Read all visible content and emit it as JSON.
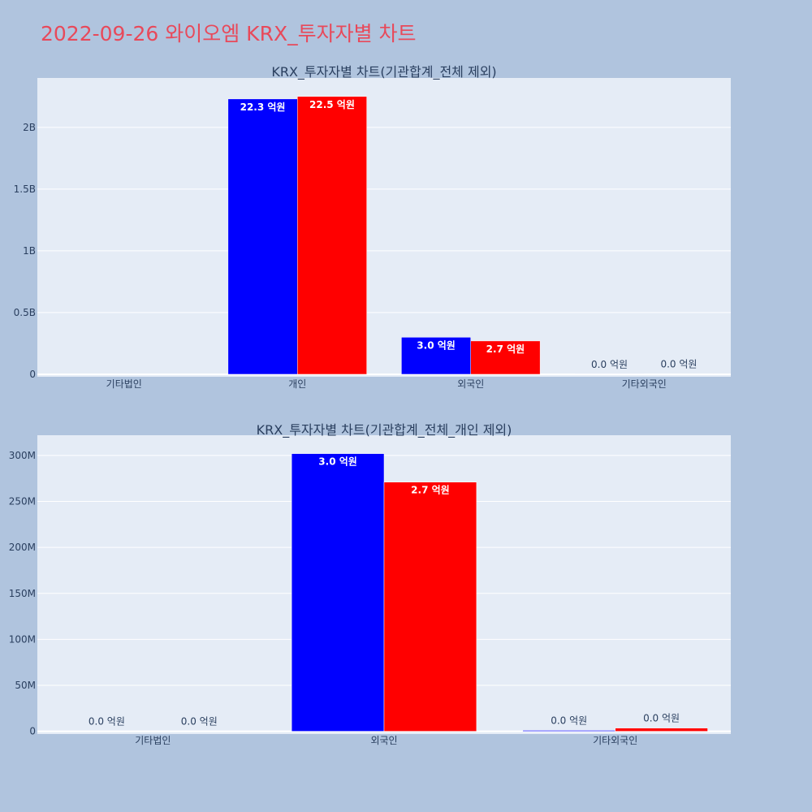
{
  "page": {
    "title": "2022-09-26 와이오엠 KRX_투자자별 차트",
    "background": "#b0c4de",
    "title_color": "#e8495a"
  },
  "chart_data": [
    {
      "type": "bar",
      "title": "KRX_투자자별 차트(기관합계_전체 제외)",
      "categories": [
        "기타법인",
        "개인",
        "외국인",
        "기타외국인"
      ],
      "series": [
        {
          "color": "#0000ff",
          "values": [
            0,
            2230000000,
            300000000,
            1000000
          ],
          "labels": [
            "",
            "22.3 억원",
            "3.0 억원",
            "0.0 억원"
          ]
        },
        {
          "color": "#ff0000",
          "values": [
            0,
            2250000000,
            270000000,
            3000000
          ],
          "labels": [
            "",
            "22.5 억원",
            "2.7 억원",
            "0.0 억원"
          ]
        }
      ],
      "yticks": [
        0,
        500000000,
        1000000000,
        1500000000,
        2000000000
      ],
      "ytick_labels": [
        "0",
        "0.5B",
        "1B",
        "1.5B",
        "2B"
      ],
      "ylim": [
        -20000000,
        2400000000
      ],
      "grid": true,
      "plot_background": "#e5ecf6"
    },
    {
      "type": "bar",
      "title": "KRX_투자자별 차트(기관합계_전체_개인 제외)",
      "categories": [
        "기타법인",
        "외국인",
        "기타외국인"
      ],
      "series": [
        {
          "color": "#0000ff",
          "values": [
            0,
            302000000,
            1000000
          ],
          "labels": [
            "0.0 억원",
            "3.0 억원",
            "0.0 억원"
          ]
        },
        {
          "color": "#ff0000",
          "values": [
            0,
            271000000,
            3500000
          ],
          "labels": [
            "0.0 억원",
            "2.7 억원",
            "0.0 억원"
          ]
        }
      ],
      "yticks": [
        0,
        50000000,
        100000000,
        150000000,
        200000000,
        250000000,
        300000000
      ],
      "ytick_labels": [
        "0",
        "50M",
        "100M",
        "150M",
        "200M",
        "250M",
        "300M"
      ],
      "ylim": [
        -3000000,
        322000000
      ],
      "grid": true,
      "plot_background": "#e5ecf6"
    }
  ]
}
